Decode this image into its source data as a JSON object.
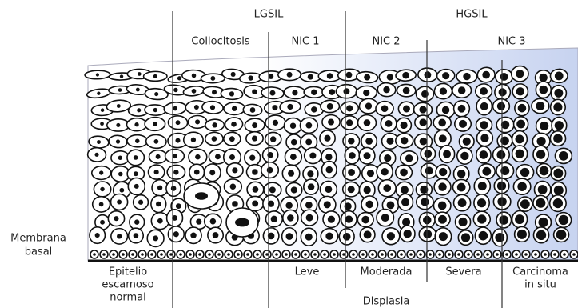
{
  "header": {
    "groups": [
      "LGSIL",
      "HGSIL"
    ],
    "stages": [
      "Coilocitosis",
      "NIC 1",
      "NIC 2",
      "NIC 3"
    ]
  },
  "side_label": {
    "lines": [
      "Membrana",
      "basal"
    ]
  },
  "bottom_labels": [
    {
      "lines": [
        "Epitelio",
        "escamoso",
        "normal"
      ]
    },
    {
      "lines": [
        "Leve"
      ]
    },
    {
      "lines": [
        "Moderada"
      ]
    },
    {
      "lines": [
        "Severa"
      ]
    },
    {
      "lines": [
        "Carcinoma",
        "in situ"
      ]
    }
  ],
  "footer": "Displasia"
}
